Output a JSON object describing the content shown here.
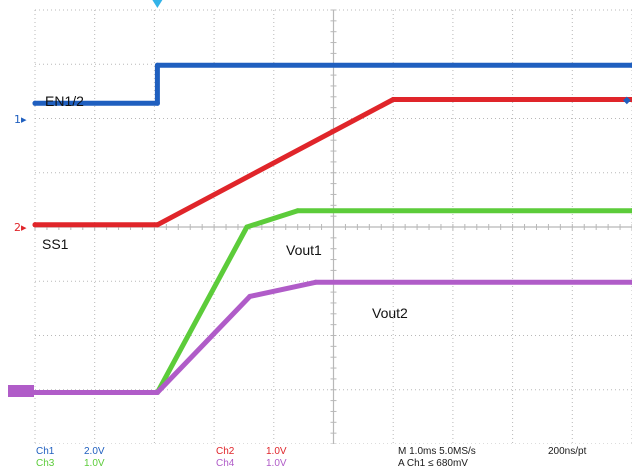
{
  "scope": {
    "colors": {
      "background": "#ffffff",
      "grid": "#b8b8b8",
      "ch1": "#1f5fbf",
      "ch2": "#e0252a",
      "ch3": "#5ccc3a",
      "ch4": "#b05cc8",
      "trigger": "#33b3e8"
    },
    "labels": {
      "en": "EN1/2",
      "ss": "SS1",
      "vout1": "Vout1",
      "vout2": "Vout2"
    },
    "channel_markers": {
      "ch1": "1",
      "ch2": "2"
    },
    "status": {
      "ch1_name": "Ch1",
      "ch1_scale": "2.0V",
      "ch2_name": "Ch2",
      "ch2_scale": "1.0V",
      "ch3_name": "Ch3",
      "ch3_scale": "1.0V",
      "ch4_name": "Ch4",
      "ch4_scale": "1.0V",
      "timebase": "M 1.0ms 5.0MS/s",
      "resolution": "200ns/pt",
      "trigger": "A Ch1 ≤ 680mV"
    }
  },
  "chart_data": {
    "type": "line",
    "title": "",
    "xlabel": "",
    "ylabel": "",
    "x_unit": "div",
    "xlim": [
      0,
      10
    ],
    "ylim": [
      0,
      8
    ],
    "grid": true,
    "series": [
      {
        "name": "EN1/2",
        "color": "#1f5fbf",
        "x": [
          0,
          2.05,
          2.05,
          10
        ],
        "y": [
          6.28,
          6.28,
          6.98,
          6.98
        ]
      },
      {
        "name": "SS1",
        "color": "#e0252a",
        "x": [
          0,
          2.05,
          6.0,
          10
        ],
        "y": [
          4.04,
          4.04,
          6.35,
          6.35
        ]
      },
      {
        "name": "Vout1",
        "color": "#5ccc3a",
        "x": [
          0,
          2.05,
          3.55,
          4.4,
          10
        ],
        "y": [
          0.95,
          0.95,
          4.0,
          4.3,
          4.3
        ]
      },
      {
        "name": "Vout2",
        "color": "#b05cc8",
        "x": [
          0,
          2.05,
          3.6,
          4.7,
          10
        ],
        "y": [
          0.95,
          0.95,
          2.72,
          2.98,
          2.98
        ]
      }
    ]
  }
}
